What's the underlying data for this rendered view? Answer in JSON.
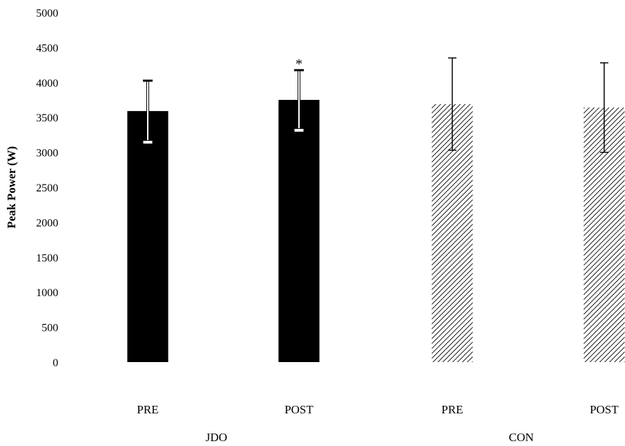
{
  "chart_data": {
    "type": "bar",
    "xlabel": "",
    "ylabel": "Peak Power (W)",
    "ylim": [
      0,
      5000
    ],
    "yticks": [
      "0",
      "500",
      "1000",
      "1500",
      "2000",
      "2500",
      "3000",
      "3500",
      "4000",
      "4500",
      "5000"
    ],
    "grid": false,
    "categories": [
      "PRE",
      "POST",
      "PRE",
      "POST"
    ],
    "groups": [
      {
        "label": "JDO",
        "span": [
          0,
          1
        ]
      },
      {
        "label": "CON",
        "span": [
          2,
          3
        ]
      }
    ],
    "values": [
      3590,
      3750,
      3690,
      3640
    ],
    "error": [
      440,
      430,
      660,
      640
    ],
    "fills": [
      "solid",
      "solid",
      "hatched",
      "hatched"
    ],
    "annotations": [
      {
        "bar": 1,
        "text": "*"
      }
    ],
    "colors": {
      "bar": "#000000",
      "background": "#ffffff"
    }
  }
}
